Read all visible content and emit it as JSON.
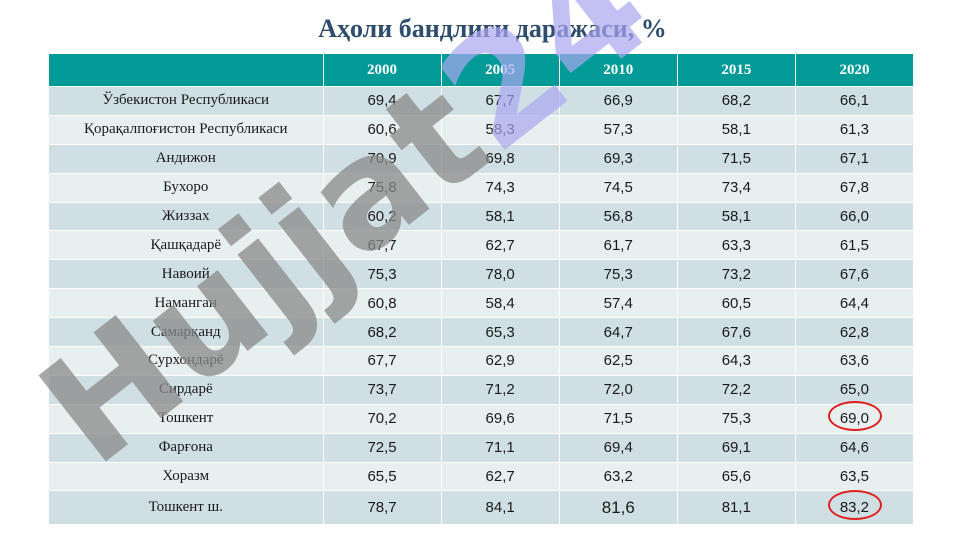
{
  "title": "Аҳоли бандлиги даражаси, %",
  "table": {
    "columns": [
      "",
      "2000",
      "2005",
      "2010",
      "2015",
      "2020"
    ],
    "rows": [
      {
        "region": "Ўзбекистон Республикаси",
        "values": [
          "69,4",
          "67,7",
          "66,9",
          "68,2",
          "66,1"
        ]
      },
      {
        "region": "Қорақалпоғистон Республикаси",
        "values": [
          "60,6",
          "58,3",
          "57,3",
          "58,1",
          "61,3"
        ]
      },
      {
        "region": "Андижон",
        "values": [
          "70,9",
          "69,8",
          "69,3",
          "71,5",
          "67,1"
        ]
      },
      {
        "region": "Бухоро",
        "values": [
          "75,8",
          "74,3",
          "74,5",
          "73,4",
          "67,8"
        ]
      },
      {
        "region": "Жиззах",
        "values": [
          "60,2",
          "58,1",
          "56,8",
          "58,1",
          "66,0"
        ]
      },
      {
        "region": "Қашқадарё",
        "values": [
          "67,7",
          "62,7",
          "61,7",
          "63,3",
          "61,5"
        ]
      },
      {
        "region": "Навоий",
        "values": [
          "75,3",
          "78,0",
          "75,3",
          "73,2",
          "67,6"
        ]
      },
      {
        "region": "Наманган",
        "values": [
          "60,8",
          "58,4",
          "57,4",
          "60,5",
          "64,4"
        ]
      },
      {
        "region": "Самарқанд",
        "values": [
          "68,2",
          "65,3",
          "64,7",
          "67,6",
          "62,8"
        ]
      },
      {
        "region": "Сурхондарё",
        "values": [
          "67,7",
          "62,9",
          "62,5",
          "64,3",
          "63,6"
        ]
      },
      {
        "region": "Сирдарё",
        "values": [
          "73,7",
          "71,2",
          "72,0",
          "72,2",
          "65,0"
        ]
      },
      {
        "region": "Тошкент",
        "values": [
          "70,2",
          "69,6",
          "71,5",
          "75,3",
          "69,0"
        ]
      },
      {
        "region": "Фарғона",
        "values": [
          "72,5",
          "71,1",
          "69,4",
          "69,1",
          "64,6"
        ]
      },
      {
        "region": "Хоразм",
        "values": [
          "65,5",
          "62,7",
          "63,2",
          "65,6",
          "63,5"
        ]
      },
      {
        "region": "Тошкент ш.",
        "values": [
          "78,7",
          "84,1",
          "81,6",
          "81,1",
          "83,2"
        ]
      }
    ],
    "highlighted_cells": [
      {
        "row": 11,
        "col": 4
      },
      {
        "row": 14,
        "col": 4
      }
    ],
    "header_color": "#009a97",
    "highlight_color": "#e02020"
  },
  "watermark": {
    "text": "Hujjat24",
    "colors": [
      "#8a8a8a",
      "#a9a7f0"
    ]
  }
}
